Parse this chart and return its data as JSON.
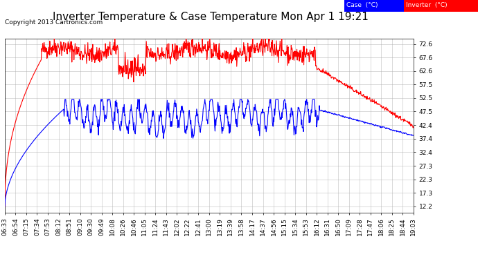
{
  "title": "Inverter Temperature & Case Temperature Mon Apr 1 19:21",
  "copyright": "Copyright 2013 Cartronics.com",
  "legend_labels": [
    "Case  (°C)",
    "Inverter  (°C)"
  ],
  "case_color": "#0000ff",
  "inverter_color": "#ff0000",
  "bg_color": "#ffffff",
  "plot_bg_color": "#ffffff",
  "grid_color": "#b0b0b0",
  "yticks": [
    12.2,
    17.3,
    22.3,
    27.3,
    32.4,
    37.4,
    42.4,
    47.5,
    52.5,
    57.5,
    62.6,
    67.6,
    72.6
  ],
  "ylim": [
    10.0,
    74.5
  ],
  "xtick_labels": [
    "06:33",
    "06:54",
    "07:15",
    "07:34",
    "07:53",
    "08:12",
    "08:51",
    "09:10",
    "09:30",
    "09:49",
    "10:08",
    "10:26",
    "10:46",
    "11:05",
    "11:24",
    "11:43",
    "12:02",
    "12:22",
    "12:41",
    "13:00",
    "13:19",
    "13:39",
    "13:58",
    "14:17",
    "14:37",
    "14:56",
    "15:15",
    "15:34",
    "15:53",
    "16:12",
    "16:31",
    "16:50",
    "17:09",
    "17:28",
    "17:47",
    "18:06",
    "18:25",
    "18:44",
    "19:03"
  ],
  "line_width": 0.8,
  "title_fontsize": 11,
  "tick_fontsize": 6.5,
  "copyright_fontsize": 6.5
}
